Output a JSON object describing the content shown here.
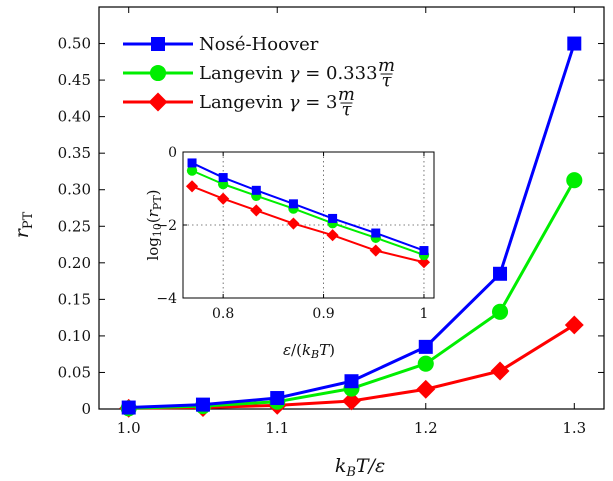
{
  "chart_data": {
    "type": "line",
    "main": {
      "xlabel": "k_B T / ε",
      "ylabel": "r_PT",
      "xlim": [
        0.98,
        1.32
      ],
      "ylim": [
        0,
        0.55
      ],
      "xticks": [
        1.0,
        1.1,
        1.2,
        1.3
      ],
      "xtick_labels": [
        "1.0",
        "1.1",
        "1.2",
        "1.3"
      ],
      "yticks": [
        0,
        0.05,
        0.1,
        0.15,
        0.2,
        0.25,
        0.3,
        0.35,
        0.4,
        0.45,
        0.5
      ],
      "ytick_labels": [
        "0",
        "0.05",
        "0.10",
        "0.15",
        "0.20",
        "0.25",
        "0.30",
        "0.35",
        "0.40",
        "0.45",
        "0.50"
      ],
      "grid": false,
      "legend_position": "top-left",
      "x": [
        1.0,
        1.05,
        1.1,
        1.15,
        1.2,
        1.25,
        1.3
      ],
      "series": [
        {
          "name": "Nosé-Hoover",
          "color": "#0000ff",
          "marker": "square",
          "values": [
            0.002,
            0.006,
            0.015,
            0.038,
            0.085,
            0.185,
            0.5
          ]
        },
        {
          "name": "Langevin γ = 0.333 m/τ",
          "color": "#00ee00",
          "marker": "circle",
          "values": [
            0.001,
            0.004,
            0.01,
            0.028,
            0.062,
            0.133,
            0.313
          ]
        },
        {
          "name": "Langevin γ = 3 m/τ",
          "color": "#ff0000",
          "marker": "diamond",
          "values": [
            0.001,
            0.002,
            0.005,
            0.011,
            0.027,
            0.052,
            0.115
          ]
        }
      ]
    },
    "inset": {
      "xlabel": "ε/(k_B T)",
      "ylabel": "log10(r_PT)",
      "xlim": [
        0.76,
        1.01
      ],
      "ylim": [
        -4,
        0
      ],
      "xticks": [
        0.8,
        0.9,
        1.0
      ],
      "xtick_labels": [
        "0.8",
        "0.9",
        "1"
      ],
      "yticks": [
        -4,
        -2,
        0
      ],
      "ytick_labels": [
        "−4",
        "−2",
        "0"
      ],
      "grid": true,
      "x": [
        0.769,
        0.8,
        0.833,
        0.87,
        0.909,
        0.952,
        1.0
      ],
      "series": [
        {
          "name": "Nosé-Hoover",
          "color": "#0000ff",
          "marker": "square",
          "values": [
            -0.3,
            -0.7,
            -1.05,
            -1.42,
            -1.82,
            -2.22,
            -2.7
          ]
        },
        {
          "name": "Langevin γ = 0.333 m/τ",
          "color": "#00ee00",
          "marker": "circle",
          "values": [
            -0.51,
            -0.88,
            -1.2,
            -1.55,
            -1.95,
            -2.35,
            -2.82
          ]
        },
        {
          "name": "Langevin γ = 3 m/τ",
          "color": "#ff0000",
          "marker": "diamond",
          "values": [
            -0.94,
            -1.28,
            -1.6,
            -1.96,
            -2.28,
            -2.7,
            -3.02
          ]
        }
      ]
    }
  }
}
